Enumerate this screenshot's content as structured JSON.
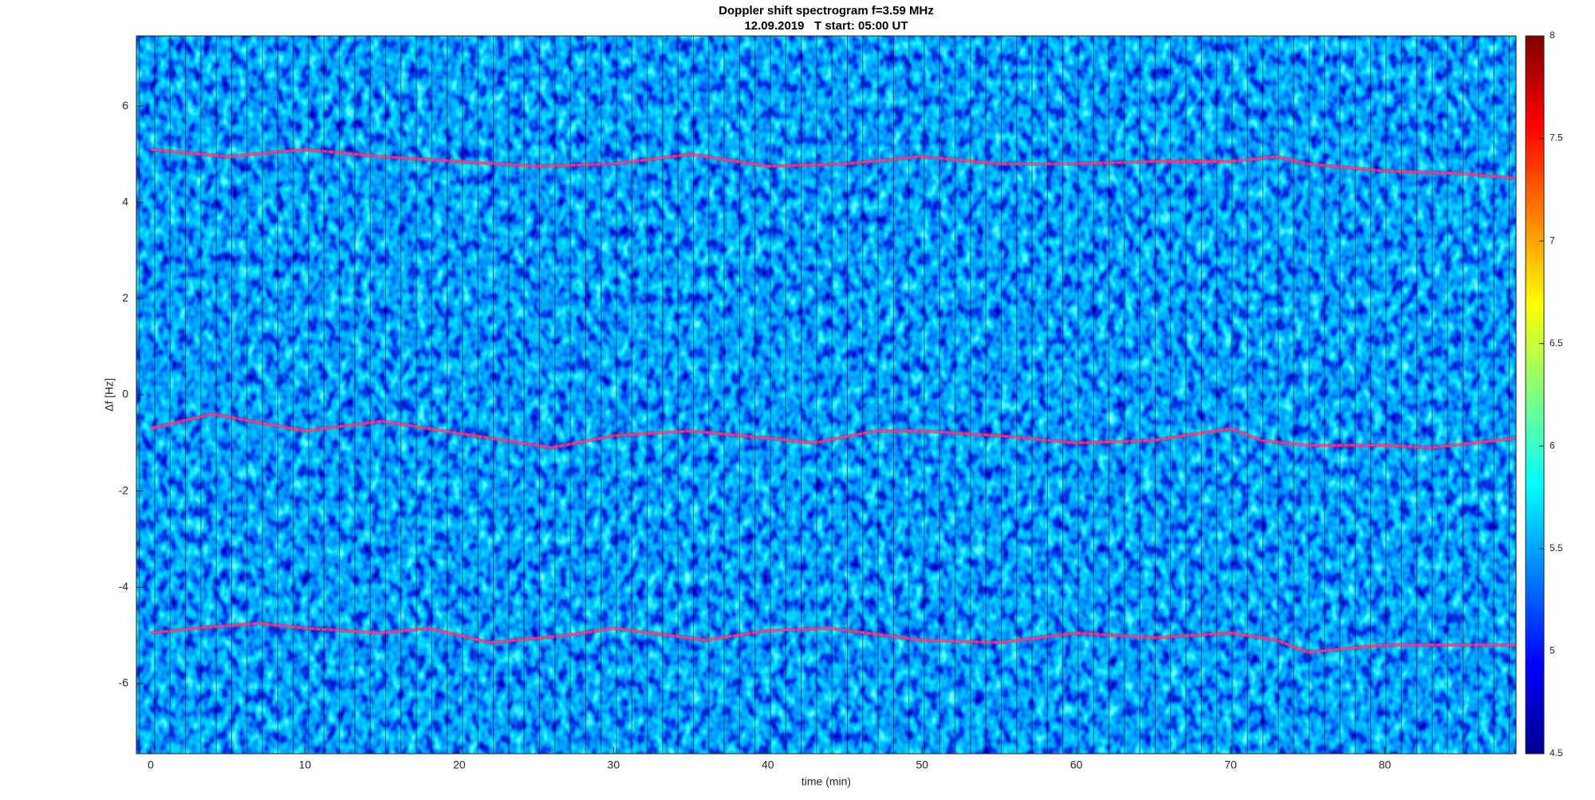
{
  "chart_data": {
    "type": "spectrogram",
    "title": "Doppler shift spectrogram f=3.59 MHz",
    "subtitle": "12.09.2019   T start: 05:00 UT",
    "x_label": "time (min)",
    "y_label": "Δf [Hz]",
    "xlim": [
      -0.93,
      88.5
    ],
    "ylim": [
      -7.46,
      7.46
    ],
    "xticks": [
      0,
      10,
      20,
      30,
      40,
      50,
      60,
      70,
      80
    ],
    "yticks": [
      -6,
      -4,
      -2,
      0,
      2,
      4,
      6
    ],
    "clim": [
      4.5,
      8
    ],
    "cticks": [
      4.5,
      5,
      5.5,
      6,
      6.5,
      7,
      7.5,
      8
    ],
    "colormap": "jet",
    "series": [
      {
        "color": "#d23cf0",
        "x": [
          0,
          5,
          10,
          15,
          20,
          25,
          30,
          35,
          40,
          45,
          50,
          55,
          60,
          65,
          70,
          73,
          75,
          80,
          85,
          88.5
        ],
        "values": [
          5.1,
          4.95,
          5.1,
          4.95,
          4.85,
          4.75,
          4.8,
          5.0,
          4.75,
          4.8,
          4.95,
          4.8,
          4.8,
          4.85,
          4.85,
          4.95,
          4.8,
          4.65,
          4.6,
          4.5
        ]
      },
      {
        "color": "#d23cf0",
        "x": [
          0,
          4,
          10,
          15,
          20,
          26,
          30,
          35,
          40,
          43,
          47,
          50,
          55,
          60,
          65,
          70,
          72,
          75,
          80,
          83,
          88.5
        ],
        "values": [
          -0.7,
          -0.4,
          -0.75,
          -0.55,
          -0.8,
          -1.1,
          -0.85,
          -0.75,
          -0.9,
          -1.0,
          -0.75,
          -0.75,
          -0.85,
          -1.0,
          -0.95,
          -0.7,
          -0.95,
          -1.05,
          -1.05,
          -1.1,
          -0.9
        ]
      },
      {
        "color": "#d23cf0",
        "x": [
          0,
          3,
          7,
          10,
          15,
          18,
          22,
          27,
          30,
          36,
          40,
          44,
          50,
          55,
          60,
          65,
          70,
          73,
          75,
          80,
          88.5
        ],
        "values": [
          -4.95,
          -4.85,
          -4.75,
          -4.85,
          -4.95,
          -4.85,
          -5.15,
          -5.0,
          -4.85,
          -5.1,
          -4.9,
          -4.85,
          -5.1,
          -5.15,
          -4.95,
          -5.05,
          -4.95,
          -5.1,
          -5.35,
          -5.2,
          -5.2
        ]
      }
    ]
  }
}
